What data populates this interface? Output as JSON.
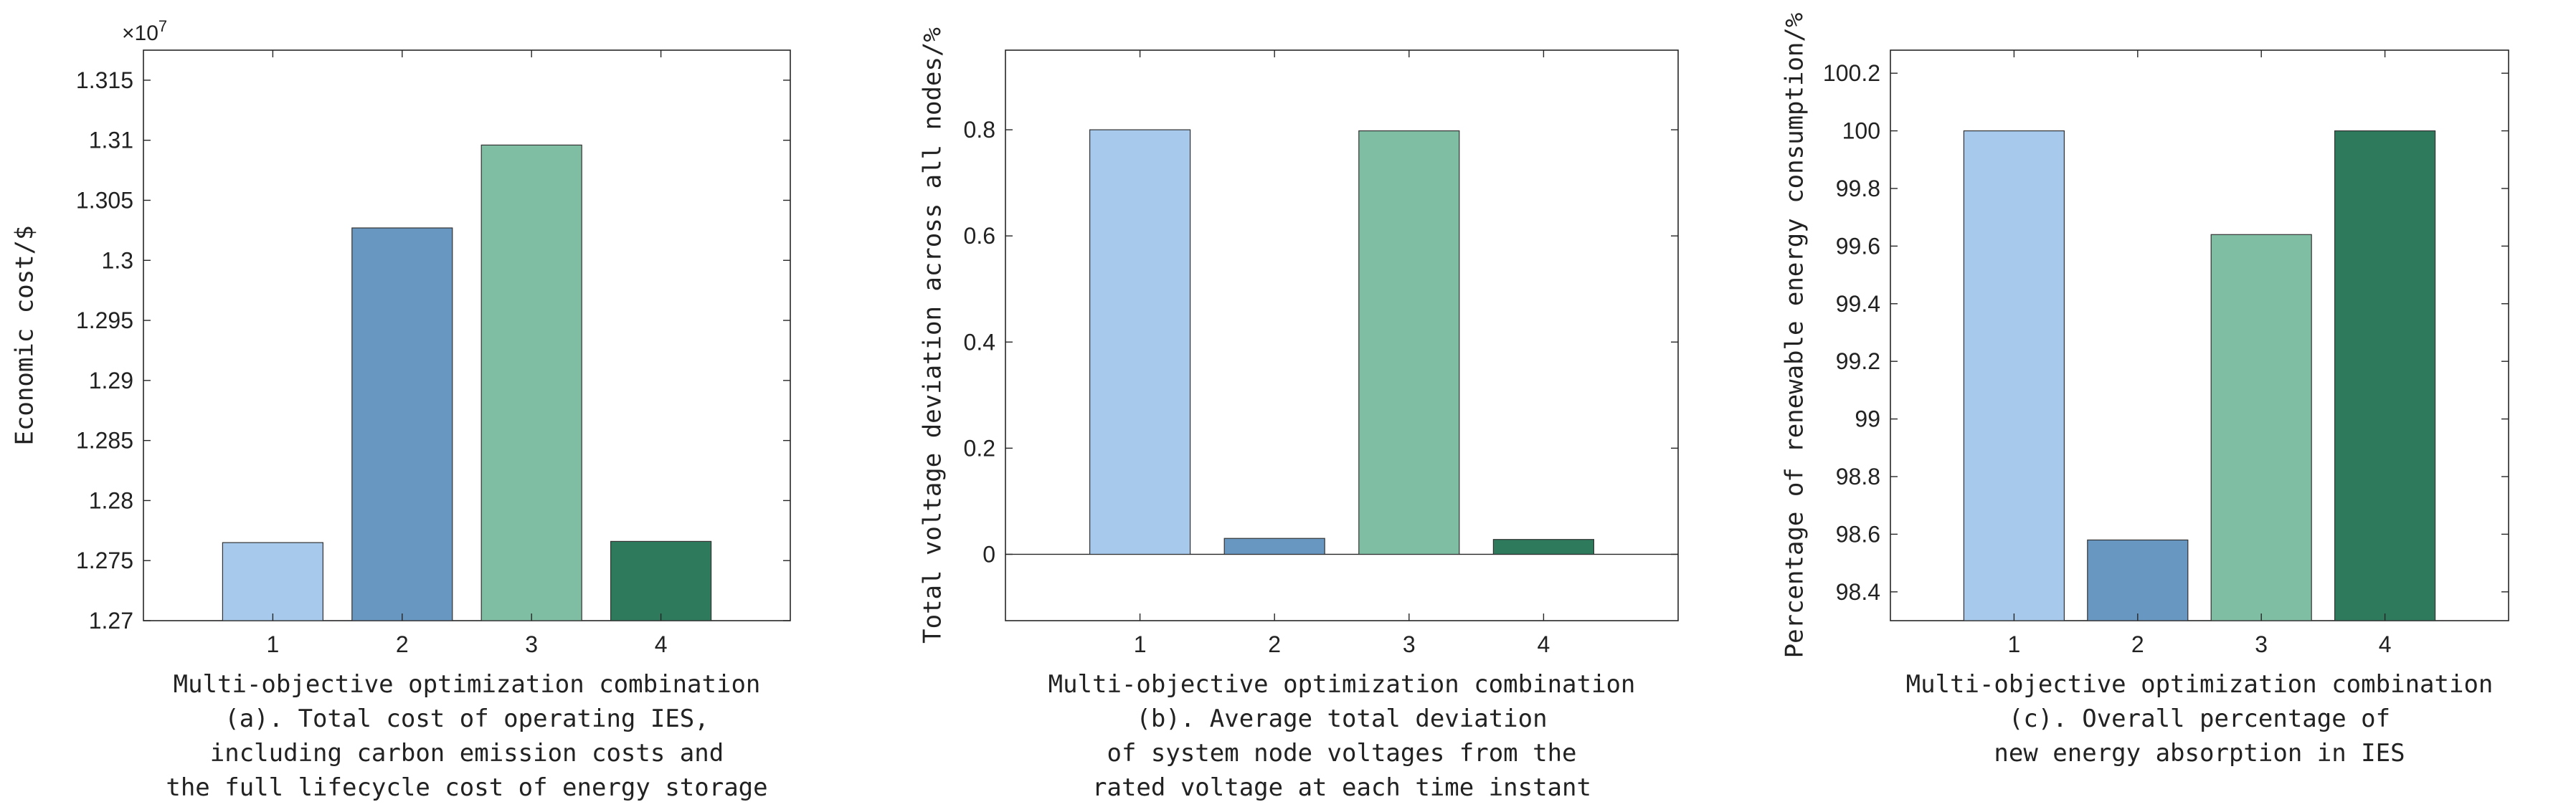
{
  "chart_data": [
    {
      "id": "a",
      "type": "bar",
      "categories": [
        "1",
        "2",
        "3",
        "4"
      ],
      "values": [
        1.2765,
        1.3027,
        1.3096,
        1.2766
      ],
      "colors": [
        "#a6c9ec",
        "#6897c1",
        "#80bea4",
        "#2e7a5d"
      ],
      "ylim": [
        1.27,
        1.3175
      ],
      "yticks": [
        1.27,
        1.275,
        1.28,
        1.285,
        1.29,
        1.295,
        1.3,
        1.305,
        1.31,
        1.315
      ],
      "ytick_labels": [
        "1.27",
        "1.275",
        "1.28",
        "1.285",
        "1.29",
        "1.295",
        "1.3",
        "1.305",
        "1.31",
        "1.315"
      ],
      "exponent": {
        "base": "×10",
        "power": "7"
      },
      "ylabel": "Economic cost/$",
      "xlabel": "Multi-objective optimization combination",
      "caption": [
        "(a). Total cost of operating IES,",
        "including carbon emission costs and",
        "the full lifecycle cost of energy storage"
      ]
    },
    {
      "id": "b",
      "type": "bar",
      "categories": [
        "1",
        "2",
        "3",
        "4"
      ],
      "values": [
        0.8,
        0.03,
        0.798,
        0.028
      ],
      "colors": [
        "#a6c9ec",
        "#6897c1",
        "#80bea4",
        "#2e7a5d"
      ],
      "ylim": [
        -0.125,
        0.95
      ],
      "baseline": 0,
      "yticks": [
        0,
        0.2,
        0.4,
        0.6,
        0.8
      ],
      "ytick_labels": [
        "0",
        "0.2",
        "0.4",
        "0.6",
        "0.8"
      ],
      "ylabel": "Total voltage deviation across all nodes/%",
      "xlabel": "Multi-objective optimization combination",
      "caption": [
        "(b). Average total deviation",
        "of system node voltages from the",
        "rated voltage at each time instant"
      ]
    },
    {
      "id": "c",
      "type": "bar",
      "categories": [
        "1",
        "2",
        "3",
        "4"
      ],
      "values": [
        100.0,
        98.58,
        99.64,
        100.0
      ],
      "colors": [
        "#a6c9ec",
        "#6897c1",
        "#80bea4",
        "#2e7a5d"
      ],
      "ylim": [
        98.3,
        100.28
      ],
      "yticks": [
        98.4,
        98.6,
        98.8,
        99,
        99.2,
        99.4,
        99.6,
        99.8,
        100,
        100.2
      ],
      "ytick_labels": [
        "98.4",
        "98.6",
        "98.8",
        "99",
        "99.2",
        "99.4",
        "99.6",
        "99.8",
        "100",
        "100.2"
      ],
      "ylabel": "Percentage of renewable energy consumption/%",
      "xlabel": "Multi-objective optimization combination",
      "caption": [
        "(c). Overall percentage of",
        "new energy absorption in IES"
      ]
    }
  ]
}
